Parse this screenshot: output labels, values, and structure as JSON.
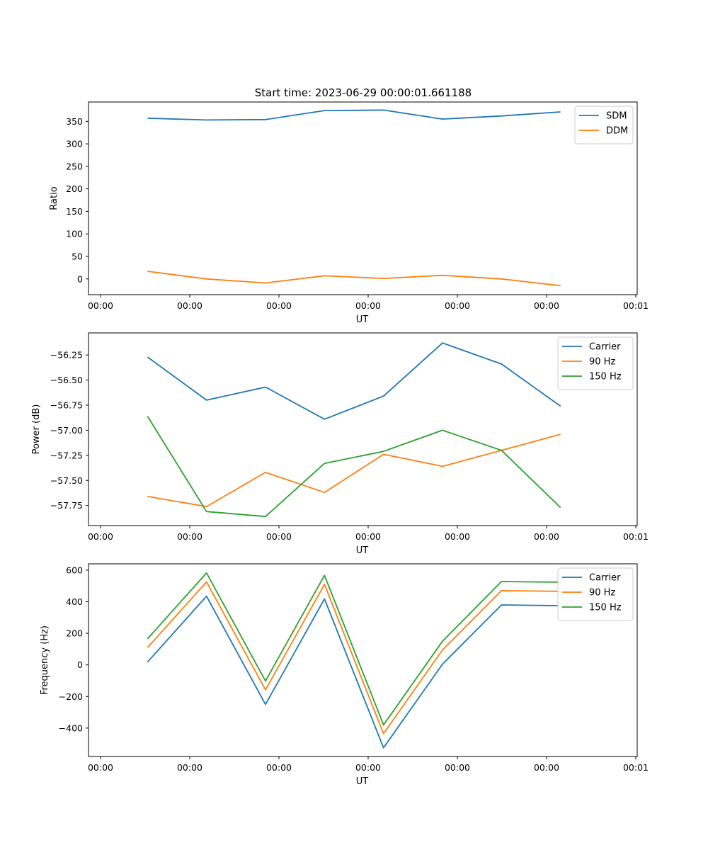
{
  "figure": {
    "title": "Start time: 2023-06-29 00:00:01.661188"
  },
  "colors": {
    "blue": "#1f77b4",
    "orange": "#ff7f0e",
    "green": "#2ca02c"
  },
  "chart_data": [
    {
      "type": "line",
      "title": "Start time: 2023-06-29 00:00:01.661188",
      "xlabel": "UT",
      "ylabel": "Ratio",
      "x_tick_labels": [
        "00:00",
        "00:00",
        "00:00",
        "00:00",
        "00:00",
        "00:00",
        "00:00"
      ],
      "x_tick_last_label": "00:01",
      "x": [
        1,
        2,
        3,
        4,
        5,
        6,
        7,
        8
      ],
      "xlim": [
        0,
        9.3
      ],
      "ylim": [
        -35,
        393
      ],
      "yticks": [
        0,
        50,
        100,
        150,
        200,
        250,
        300,
        350
      ],
      "legend_position": "upper-right",
      "series": [
        {
          "name": "SDM",
          "color": "#1f77b4",
          "values": [
            357,
            353,
            354,
            374,
            375,
            355,
            362,
            371
          ]
        },
        {
          "name": "DDM",
          "color": "#ff7f0e",
          "values": [
            17,
            0,
            -9,
            7,
            1,
            8,
            0,
            -15
          ]
        }
      ]
    },
    {
      "type": "line",
      "xlabel": "UT",
      "ylabel": "Power (dB)",
      "x_tick_labels": [
        "00:00",
        "00:00",
        "00:00",
        "00:00",
        "00:00",
        "00:00",
        "00:00"
      ],
      "x_tick_last_label": "00:01",
      "x": [
        1,
        2,
        3,
        4,
        5,
        6,
        7,
        8
      ],
      "xlim": [
        0,
        9.3
      ],
      "ylim": [
        -57.95,
        -56.03
      ],
      "yticks": [
        -57.75,
        -57.5,
        -57.25,
        -57.0,
        -56.75,
        -56.5,
        -56.25
      ],
      "legend_position": "upper-right",
      "series": [
        {
          "name": "Carrier",
          "color": "#1f77b4",
          "values": [
            -56.27,
            -56.7,
            -56.57,
            -56.89,
            -56.66,
            -56.13,
            -56.34,
            -56.76
          ]
        },
        {
          "name": "90 Hz",
          "color": "#ff7f0e",
          "values": [
            -57.66,
            -57.76,
            -57.42,
            -57.62,
            -57.24,
            -57.36,
            -57.2,
            -57.04
          ]
        },
        {
          "name": "150 Hz",
          "color": "#2ca02c",
          "values": [
            -56.86,
            -57.81,
            -57.86,
            -57.33,
            -57.21,
            -57.0,
            -57.2,
            -57.77
          ]
        }
      ]
    },
    {
      "type": "line",
      "xlabel": "UT",
      "ylabel": "Frequency (Hz)",
      "x_tick_labels": [
        "00:00",
        "00:00",
        "00:00",
        "00:00",
        "00:00",
        "00:00",
        "00:00"
      ],
      "x_tick_last_label": "00:01",
      "x": [
        1,
        2,
        3,
        4,
        5,
        6,
        7,
        8
      ],
      "xlim": [
        0,
        9.3
      ],
      "ylim": [
        -580,
        640
      ],
      "yticks": [
        -400,
        -200,
        0,
        200,
        400,
        600
      ],
      "legend_position": "upper-right",
      "series": [
        {
          "name": "Carrier",
          "color": "#1f77b4",
          "values": [
            18,
            435,
            -250,
            418,
            -525,
            5,
            380,
            375
          ]
        },
        {
          "name": "90 Hz",
          "color": "#ff7f0e",
          "values": [
            110,
            525,
            -158,
            510,
            -435,
            95,
            470,
            466
          ]
        },
        {
          "name": "150 Hz",
          "color": "#2ca02c",
          "values": [
            165,
            582,
            -102,
            567,
            -380,
            150,
            528,
            524
          ]
        }
      ]
    }
  ]
}
